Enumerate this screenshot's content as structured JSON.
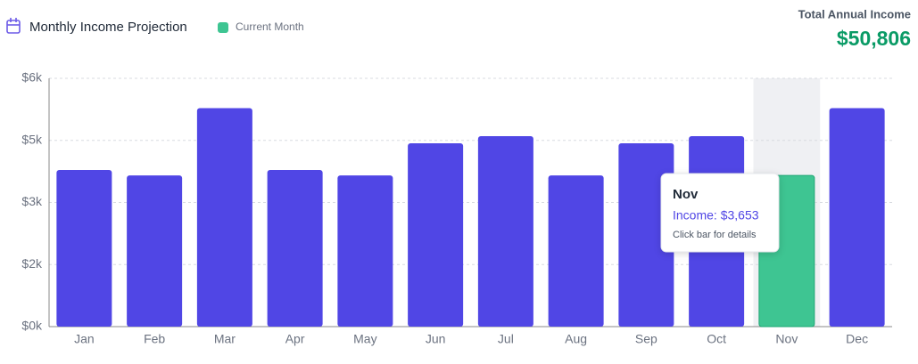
{
  "chart_data": {
    "type": "bar",
    "title": "Monthly Income Projection",
    "legend_label": "Current Month",
    "highlight_color": "#3ec592",
    "color": "#5046e5",
    "summary_label": "Total Annual Income",
    "summary_value": "$50,806",
    "categories": [
      "Jan",
      "Feb",
      "Mar",
      "Apr",
      "May",
      "Jun",
      "Jul",
      "Aug",
      "Sep",
      "Oct",
      "Nov",
      "Dec"
    ],
    "values": [
      3785,
      3653,
      5280,
      3785,
      3653,
      4430,
      4602,
      3653,
      4430,
      4602,
      3653,
      5280
    ],
    "highlight_index": 10,
    "ylim": [
      0,
      6000
    ],
    "yticks": [
      {
        "value": 0,
        "label": "$0k"
      },
      {
        "value": 1500,
        "label": "$2k"
      },
      {
        "value": 3000,
        "label": "$3k"
      },
      {
        "value": 4500,
        "label": "$5k"
      },
      {
        "value": 6000,
        "label": "$6k"
      }
    ],
    "grid": true,
    "tooltip": {
      "text": "Income: $3,653",
      "hint": "Click bar for details"
    }
  }
}
